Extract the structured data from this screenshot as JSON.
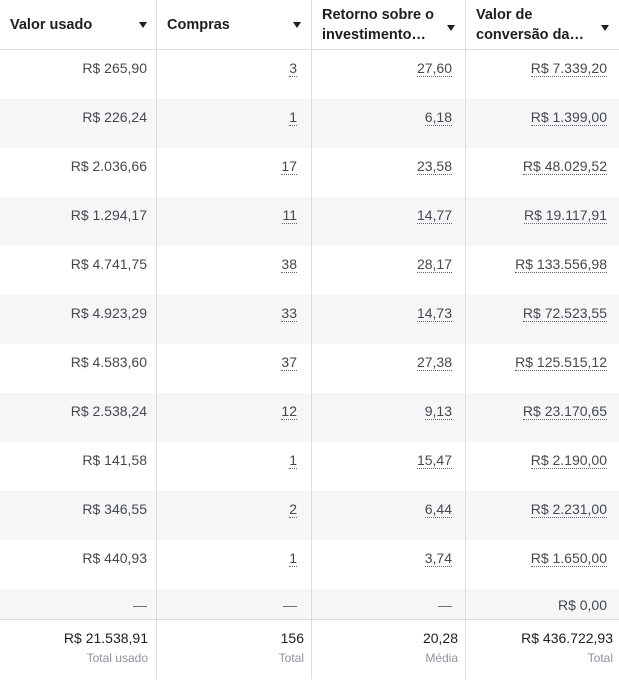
{
  "headers": {
    "valor_usado": "Valor usado",
    "compras": "Compras",
    "retorno": [
      "Retorno sobre o",
      "investimento…"
    ],
    "valor_conversao": [
      "Valor de",
      "conversão da…"
    ]
  },
  "rows": [
    {
      "valor": "R$ 265,90",
      "compras": "3",
      "retorno": "27,60",
      "conversao": "R$ 7.339,20"
    },
    {
      "valor": "R$ 226,24",
      "compras": "1",
      "retorno": "6,18",
      "conversao": "R$ 1.399,00"
    },
    {
      "valor": "R$ 2.036,66",
      "compras": "17",
      "retorno": "23,58",
      "conversao": "R$ 48.029,52"
    },
    {
      "valor": "R$ 1.294,17",
      "compras": "11",
      "retorno": "14,77",
      "conversao": "R$ 19.117,91"
    },
    {
      "valor": "R$ 4.741,75",
      "compras": "38",
      "retorno": "28,17",
      "conversao": "R$ 133.556,98"
    },
    {
      "valor": "R$ 4.923,29",
      "compras": "33",
      "retorno": "14,73",
      "conversao": "R$ 72.523,55"
    },
    {
      "valor": "R$ 4.583,60",
      "compras": "37",
      "retorno": "27,38",
      "conversao": "R$ 125.515,12"
    },
    {
      "valor": "R$ 2.538,24",
      "compras": "12",
      "retorno": "9,13",
      "conversao": "R$ 23.170,65"
    },
    {
      "valor": "R$ 141,58",
      "compras": "1",
      "retorno": "15,47",
      "conversao": "R$ 2.190,00"
    },
    {
      "valor": "R$ 346,55",
      "compras": "2",
      "retorno": "6,44",
      "conversao": "R$ 2.231,00"
    },
    {
      "valor": "R$ 440,93",
      "compras": "1",
      "retorno": "3,74",
      "conversao": "R$ 1.650,00"
    },
    {
      "valor": "—",
      "compras": "—",
      "retorno": "—",
      "conversao": "R$ 0,00"
    }
  ],
  "footer": {
    "valor_total": "R$ 21.538,91",
    "valor_label": "Total usado",
    "compras_total": "156",
    "compras_label": "Total",
    "retorno_total": "20,28",
    "retorno_label": "Média",
    "conversao_total": "R$ 436.722,93",
    "conversao_label": "Total"
  }
}
